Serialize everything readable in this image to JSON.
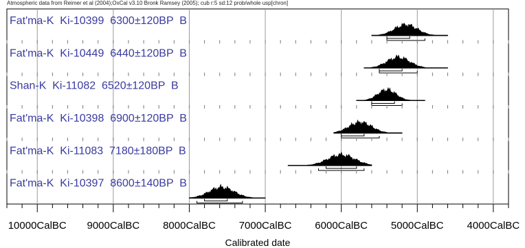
{
  "chart_data": {
    "type": "multiple-plot",
    "header": "Atmospheric data from Reimer et al (2004);OxCal v3.10 Bronk Ramsey (2005); cub r:5 sd:12 prob/whole usp[chron]",
    "xlabel": "Calibrated date",
    "x_ticks": [
      "10000CalBC",
      "9000CalBC",
      "8000CalBC",
      "7000CalBC",
      "6000CalBC",
      "5000CalBC",
      "4000CalBC"
    ],
    "x_tick_values": [
      -10000,
      -9000,
      -8000,
      -7000,
      -6000,
      -5000,
      -4000
    ],
    "x_range": [
      -10400,
      -3800
    ],
    "grid": true,
    "label_color": "#3a3aa0",
    "series": [
      {
        "label": "Fat'ma-K  Ki-10399  6300±120BP  B",
        "range_start": -5600,
        "range_end": -4600,
        "peak_start": -5400,
        "peak_end": -4900,
        "sigma1": [
          -5400,
          -5100
        ],
        "sigma2": [
          -5400,
          -4900
        ]
      },
      {
        "label": "Fat'ma-K  Ki-10449  6440±120BP  B",
        "range_start": -5700,
        "range_end": -4600,
        "peak_start": -5500,
        "peak_end": -5000,
        "sigma1": [
          -5500,
          -5200
        ],
        "sigma2": [
          -5500,
          -5000
        ]
      },
      {
        "label": "Shan-K  Ki-11082  6520±120BP  B",
        "range_start": -5800,
        "range_end": -4900,
        "peak_start": -5600,
        "peak_end": -5200,
        "sigma1": [
          -5600,
          -5300
        ],
        "sigma2": [
          -5600,
          -5200
        ]
      },
      {
        "label": "Fat'ma-K  Ki-10398  6900±120BP  B",
        "range_start": -6100,
        "range_end": -5200,
        "peak_start": -6000,
        "peak_end": -5500,
        "sigma1": [
          -6000,
          -5700
        ],
        "sigma2": [
          -6000,
          -5500
        ]
      },
      {
        "label": "Fat'ma-K  Ki-11083  7180±180BP  B",
        "range_start": -6700,
        "range_end": -5600,
        "peak_start": -6300,
        "peak_end": -5700,
        "sigma1": [
          -6200,
          -5800
        ],
        "sigma2": [
          -6300,
          -5700
        ]
      },
      {
        "label": "Fat'ma-K  Ki-10397  8600±140BP  B",
        "range_start": -8000,
        "range_end": -7000,
        "peak_start": -7850,
        "peak_end": -7300,
        "sigma1": [
          -7800,
          -7500
        ],
        "sigma2": [
          -7900,
          -7300
        ]
      }
    ]
  }
}
